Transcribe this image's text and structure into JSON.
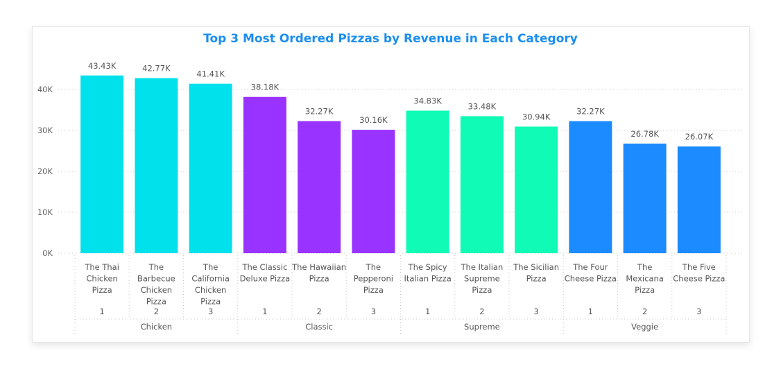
{
  "chart_data": {
    "type": "bar",
    "title": "Top 3 Most Ordered Pizzas by Revenue in Each Category",
    "ylim": [
      0,
      45000
    ],
    "yticks": [
      {
        "value": 0,
        "label": "0K"
      },
      {
        "value": 10000,
        "label": "10K"
      },
      {
        "value": 20000,
        "label": "20K"
      },
      {
        "value": 30000,
        "label": "30K"
      },
      {
        "value": 40000,
        "label": "40K"
      }
    ],
    "grid": true,
    "groups": [
      {
        "name": "Chicken",
        "color": "#01e1ec"
      },
      {
        "name": "Classic",
        "color": "#9933ff"
      },
      {
        "name": "Supreme",
        "color": "#0ffbb6"
      },
      {
        "name": "Veggie",
        "color": "#1c8bff"
      }
    ],
    "bars": [
      {
        "group": 0,
        "lines": [
          "The Thai",
          "Chicken",
          "Pizza"
        ],
        "rank": "1",
        "value": 43430,
        "label": "43.43K"
      },
      {
        "group": 0,
        "lines": [
          "The",
          "Barbecue",
          "Chicken",
          "Pizza"
        ],
        "rank": "2",
        "value": 42770,
        "label": "42.77K"
      },
      {
        "group": 0,
        "lines": [
          "The",
          "California",
          "Chicken",
          "Pizza"
        ],
        "rank": "3",
        "value": 41410,
        "label": "41.41K"
      },
      {
        "group": 1,
        "lines": [
          "The Classic",
          "Deluxe Pizza"
        ],
        "rank": "1",
        "value": 38180,
        "label": "38.18K"
      },
      {
        "group": 1,
        "lines": [
          "The Hawaiian",
          "Pizza"
        ],
        "rank": "2",
        "value": 32270,
        "label": "32.27K"
      },
      {
        "group": 1,
        "lines": [
          "The",
          "Pepperoni",
          "Pizza"
        ],
        "rank": "3",
        "value": 30160,
        "label": "30.16K"
      },
      {
        "group": 2,
        "lines": [
          "The Spicy",
          "Italian Pizza"
        ],
        "rank": "1",
        "value": 34830,
        "label": "34.83K"
      },
      {
        "group": 2,
        "lines": [
          "The Italian",
          "Supreme",
          "Pizza"
        ],
        "rank": "2",
        "value": 33480,
        "label": "33.48K"
      },
      {
        "group": 2,
        "lines": [
          "The Sicilian",
          "Pizza"
        ],
        "rank": "3",
        "value": 30940,
        "label": "30.94K"
      },
      {
        "group": 3,
        "lines": [
          "The Four",
          "Cheese Pizza"
        ],
        "rank": "1",
        "value": 32270,
        "label": "32.27K"
      },
      {
        "group": 3,
        "lines": [
          "The",
          "Mexicana",
          "Pizza"
        ],
        "rank": "2",
        "value": 26780,
        "label": "26.78K"
      },
      {
        "group": 3,
        "lines": [
          "The Five",
          "Cheese Pizza"
        ],
        "rank": "3",
        "value": 26070,
        "label": "26.07K"
      }
    ]
  }
}
